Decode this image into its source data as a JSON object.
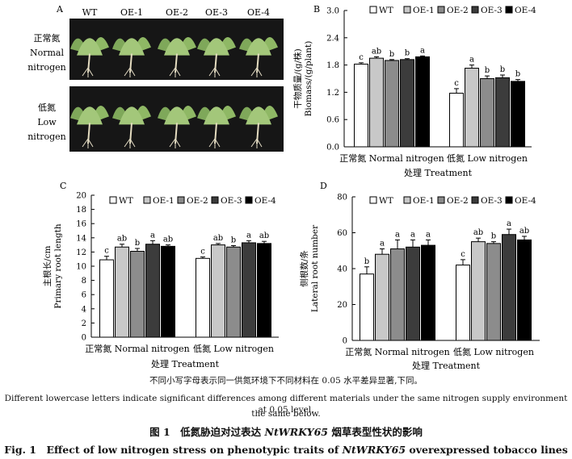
{
  "panel_a": {
    "letter": "A",
    "columns": [
      "WT",
      "OE-1",
      "OE-2",
      "OE-3",
      "OE-4"
    ],
    "rows": [
      {
        "cn": "正常氮",
        "en1": "Normal",
        "en2": "nitrogen"
      },
      {
        "cn": "低氮",
        "en1": "Low",
        "en2": "nitrogen"
      }
    ]
  },
  "chart_data": [
    {
      "panel": "B",
      "type": "bar",
      "ylabel_cn": "干物质量/(g/株)",
      "ylabel_en": "Biomass/(g/plant)",
      "xlabel": "处理 Treatment",
      "groups": [
        "正常氮 Normal nitrogen",
        "低氮 Low nitrogen"
      ],
      "series": [
        {
          "name": "WT",
          "values": [
            1.82,
            1.18
          ],
          "errors": [
            0.03,
            0.1
          ],
          "letters": [
            "c",
            "c"
          ],
          "color": "#ffffff"
        },
        {
          "name": "OE-1",
          "values": [
            1.95,
            1.73
          ],
          "errors": [
            0.03,
            0.07
          ],
          "letters": [
            "ab",
            "a"
          ],
          "color": "#c8c8c8"
        },
        {
          "name": "OE-2",
          "values": [
            1.9,
            1.5
          ],
          "errors": [
            0.02,
            0.06
          ],
          "letters": [
            "b",
            "b"
          ],
          "color": "#8c8c8c"
        },
        {
          "name": "OE-3",
          "values": [
            1.92,
            1.52
          ],
          "errors": [
            0.02,
            0.06
          ],
          "letters": [
            "b",
            "b"
          ],
          "color": "#3c3c3c"
        },
        {
          "name": "OE-4",
          "values": [
            1.98,
            1.44
          ],
          "errors": [
            0.02,
            0.04
          ],
          "letters": [
            "a",
            "b"
          ],
          "color": "#000000"
        }
      ],
      "ylim": [
        0.0,
        3.0
      ],
      "yticks": [
        "0.0",
        "0.6",
        "1.2",
        "1.8",
        "2.4",
        "3.0"
      ]
    },
    {
      "panel": "C",
      "type": "bar",
      "ylabel_cn": "主根长/cm",
      "ylabel_en": "Primary root length",
      "xlabel": "处理 Treatment",
      "groups": [
        "正常氮 Normal nitrogen",
        "低氮 Low nitrogen"
      ],
      "series": [
        {
          "name": "WT",
          "values": [
            10.9,
            11.1
          ],
          "errors": [
            0.5,
            0.2
          ],
          "letters": [
            "c",
            "c"
          ],
          "color": "#ffffff"
        },
        {
          "name": "OE-1",
          "values": [
            12.7,
            13.0
          ],
          "errors": [
            0.4,
            0.2
          ],
          "letters": [
            "ab",
            "ab"
          ],
          "color": "#c8c8c8"
        },
        {
          "name": "OE-2",
          "values": [
            12.1,
            12.7
          ],
          "errors": [
            0.4,
            0.2
          ],
          "letters": [
            "b",
            "b"
          ],
          "color": "#8c8c8c"
        },
        {
          "name": "OE-3",
          "values": [
            13.1,
            13.3
          ],
          "errors": [
            0.5,
            0.3
          ],
          "letters": [
            "a",
            "a"
          ],
          "color": "#3c3c3c"
        },
        {
          "name": "OE-4",
          "values": [
            12.8,
            13.2
          ],
          "errors": [
            0.2,
            0.3
          ],
          "letters": [
            "ab",
            "ab"
          ],
          "color": "#000000"
        }
      ],
      "ylim": [
        0,
        20
      ],
      "yticks": [
        "0",
        "2",
        "4",
        "6",
        "8",
        "10",
        "12",
        "14",
        "16",
        "18",
        "20"
      ]
    },
    {
      "panel": "D",
      "type": "bar",
      "ylabel_cn": "侧根数/条",
      "ylabel_en": "Lateral root number",
      "xlabel": "处理 Treatment",
      "groups": [
        "正常氮 Normal nitrogen",
        "低氮 Low nitrogen"
      ],
      "series": [
        {
          "name": "WT",
          "values": [
            37,
            42
          ],
          "errors": [
            4,
            3
          ],
          "letters": [
            "b",
            "c"
          ],
          "color": "#ffffff"
        },
        {
          "name": "OE-1",
          "values": [
            48,
            55
          ],
          "errors": [
            3,
            2
          ],
          "letters": [
            "a",
            "ab"
          ],
          "color": "#c8c8c8"
        },
        {
          "name": "OE-2",
          "values": [
            51,
            54
          ],
          "errors": [
            5,
            1
          ],
          "letters": [
            "a",
            "b"
          ],
          "color": "#8c8c8c"
        },
        {
          "name": "OE-3",
          "values": [
            52,
            59
          ],
          "errors": [
            4,
            3
          ],
          "letters": [
            "a",
            "a"
          ],
          "color": "#3c3c3c"
        },
        {
          "name": "OE-4",
          "values": [
            53,
            56
          ],
          "errors": [
            3,
            2
          ],
          "letters": [
            "a",
            "ab"
          ],
          "color": "#000000"
        }
      ],
      "ylim": [
        0,
        80
      ],
      "yticks": [
        "0",
        "20",
        "40",
        "60",
        "80"
      ]
    }
  ],
  "caption": {
    "note_cn": "不同小写字母表示同一供氮环境下不同材料在 0.05 水平差异显著,下同。",
    "note_en_1": "Different lowercase letters indicate significant differences among different materials under the same nitrogen supply environment at 0.05 level,",
    "note_en_2": "the same below.",
    "title_cn_pre": "图 1　低氮胁迫对过表达 ",
    "gene": "NtWRKY65",
    "title_cn_post": " 烟草表型性状的影响",
    "title_en_pre": "Fig. 1　Effect of low nitrogen stress on phenotypic traits of ",
    "title_en_post": " overexpressed tobacco lines"
  }
}
